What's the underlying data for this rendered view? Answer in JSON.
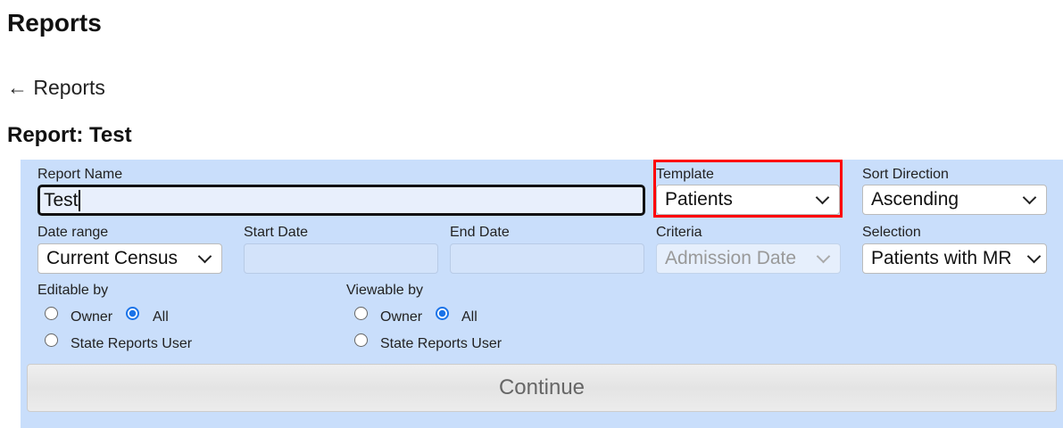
{
  "page": {
    "title": "Reports",
    "back_link": "← Reports",
    "report_heading": "Report: Test"
  },
  "form": {
    "report_name": {
      "label": "Report Name",
      "value": "Test"
    },
    "template": {
      "label": "Template",
      "value": "Patients"
    },
    "sort_direction": {
      "label": "Sort Direction",
      "value": "Ascending"
    },
    "date_range": {
      "label": "Date range",
      "value": "Current Census"
    },
    "start_date": {
      "label": "Start Date",
      "value": ""
    },
    "end_date": {
      "label": "End Date",
      "value": ""
    },
    "criteria": {
      "label": "Criteria",
      "value": "Admission Date",
      "disabled": true
    },
    "selection": {
      "label": "Selection",
      "value": "Patients with MR"
    },
    "editable_by": {
      "label": "Editable by",
      "options": [
        "Owner",
        "All",
        "State Reports User"
      ],
      "selected": "All"
    },
    "viewable_by": {
      "label": "Viewable by",
      "options": [
        "Owner",
        "All",
        "State Reports User"
      ],
      "selected": "All"
    },
    "continue_label": "Continue"
  },
  "highlight_color": "#ff0000",
  "panel_color": "#c9defb"
}
